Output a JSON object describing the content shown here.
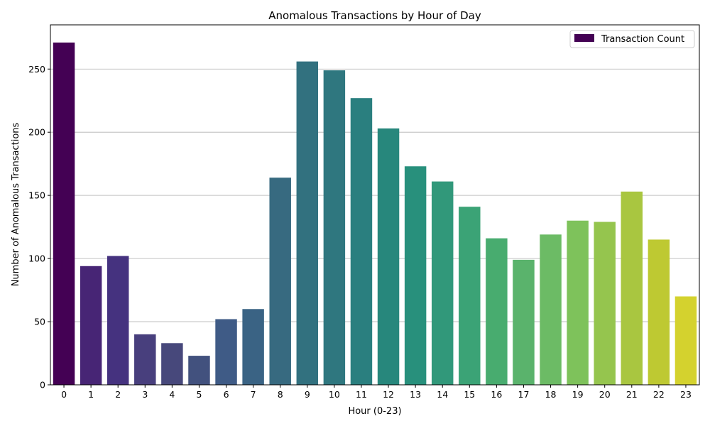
{
  "chart_data": {
    "type": "bar",
    "title": "Anomalous Transactions by Hour of Day",
    "xlabel": "Hour (0-23)",
    "ylabel": "Number of Anomalous Transactions",
    "categories": [
      "0",
      "1",
      "2",
      "3",
      "4",
      "5",
      "6",
      "7",
      "8",
      "9",
      "10",
      "11",
      "12",
      "13",
      "14",
      "15",
      "16",
      "17",
      "18",
      "19",
      "20",
      "21",
      "22",
      "23"
    ],
    "series": [
      {
        "name": "Transaction Count",
        "values": [
          271,
          94,
          102,
          40,
          33,
          23,
          52,
          60,
          164,
          256,
          249,
          227,
          203,
          173,
          161,
          141,
          116,
          99,
          119,
          130,
          129,
          153,
          115,
          70
        ]
      }
    ],
    "ylim": [
      0,
      285
    ],
    "yticks": [
      0,
      50,
      100,
      150,
      200,
      250
    ],
    "grid": "y",
    "legend": "top-right",
    "colors": [
      "#440154",
      "#472575",
      "#45327f",
      "#483f7d",
      "#47487b",
      "#42517e",
      "#3f5b86",
      "#3a6384",
      "#376a80",
      "#32717f",
      "#2f777f",
      "#2a7f7f",
      "#27877c",
      "#28907c",
      "#31987a",
      "#3ba376",
      "#48ac6f",
      "#5ab36c",
      "#6cbb65",
      "#7ec25b",
      "#95c54e",
      "#a9c640",
      "#bec932",
      "#d4d22e"
    ]
  }
}
